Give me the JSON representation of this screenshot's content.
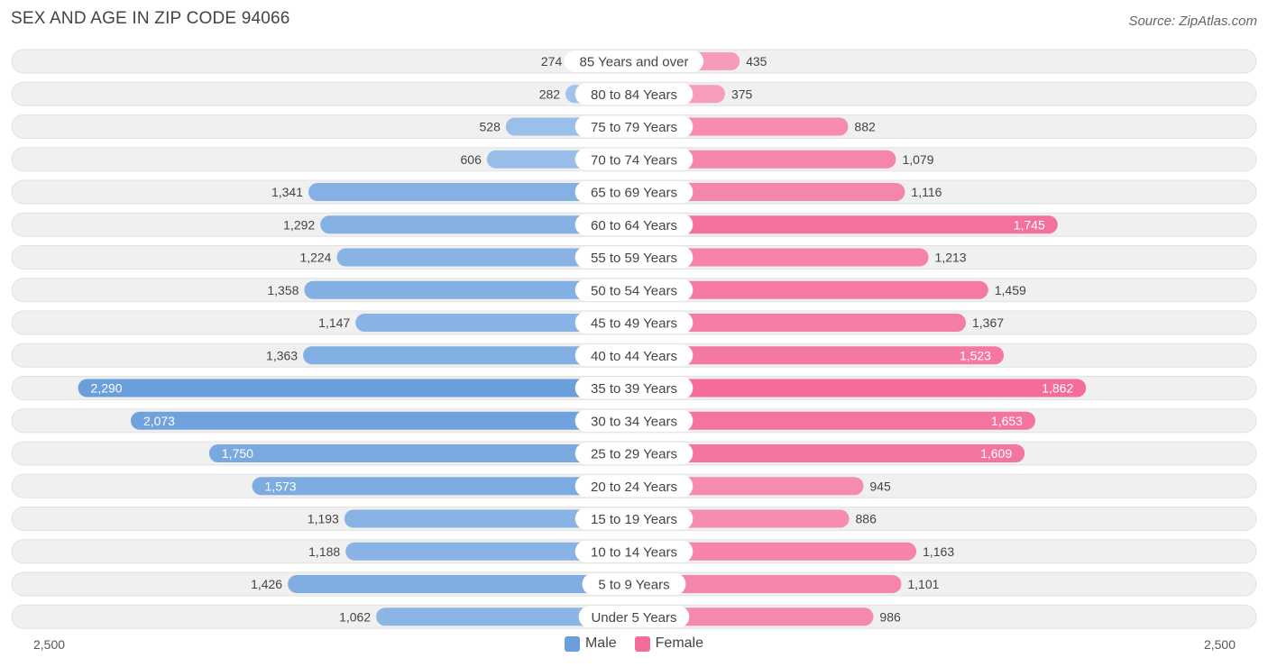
{
  "header": {
    "title": "SEX AND AGE IN ZIP CODE 94066",
    "source": "Source: ZipAtlas.com"
  },
  "legend": {
    "male_label": "Male",
    "female_label": "Female"
  },
  "axis": {
    "left_label": "2,500",
    "right_label": "2,500"
  },
  "colors": {
    "male": "#6a9fdc",
    "female": "#f46d98",
    "male_light": "#a8c8ec",
    "female_light": "#f7a9c2",
    "row_bg": "#f0f0f0"
  },
  "chart_data": {
    "type": "bar",
    "orientation": "horizontal-diverging",
    "title": "SEX AND AGE IN ZIP CODE 94066",
    "xlim": [
      -2500,
      2500
    ],
    "categories": [
      "85 Years and over",
      "80 to 84 Years",
      "75 to 79 Years",
      "70 to 74 Years",
      "65 to 69 Years",
      "60 to 64 Years",
      "55 to 59 Years",
      "50 to 54 Years",
      "45 to 49 Years",
      "40 to 44 Years",
      "35 to 39 Years",
      "30 to 34 Years",
      "25 to 29 Years",
      "20 to 24 Years",
      "15 to 19 Years",
      "10 to 14 Years",
      "5 to 9 Years",
      "Under 5 Years"
    ],
    "series": [
      {
        "name": "Male",
        "values": [
          274,
          282,
          528,
          606,
          1341,
          1292,
          1224,
          1358,
          1147,
          1363,
          2290,
          2073,
          1750,
          1573,
          1193,
          1188,
          1426,
          1062
        ],
        "labels": [
          "274",
          "282",
          "528",
          "606",
          "1,341",
          "1,292",
          "1,224",
          "1,358",
          "1,147",
          "1,363",
          "2,290",
          "2,073",
          "1,750",
          "1,573",
          "1,193",
          "1,188",
          "1,426",
          "1,062"
        ]
      },
      {
        "name": "Female",
        "values": [
          435,
          375,
          882,
          1079,
          1116,
          1745,
          1213,
          1459,
          1367,
          1523,
          1862,
          1653,
          1609,
          945,
          886,
          1163,
          1101,
          986
        ],
        "labels": [
          "435",
          "375",
          "882",
          "1,079",
          "1,116",
          "1,745",
          "1,213",
          "1,459",
          "1,367",
          "1,523",
          "1,862",
          "1,653",
          "1,609",
          "945",
          "886",
          "1,163",
          "1,101",
          "986"
        ]
      }
    ]
  }
}
